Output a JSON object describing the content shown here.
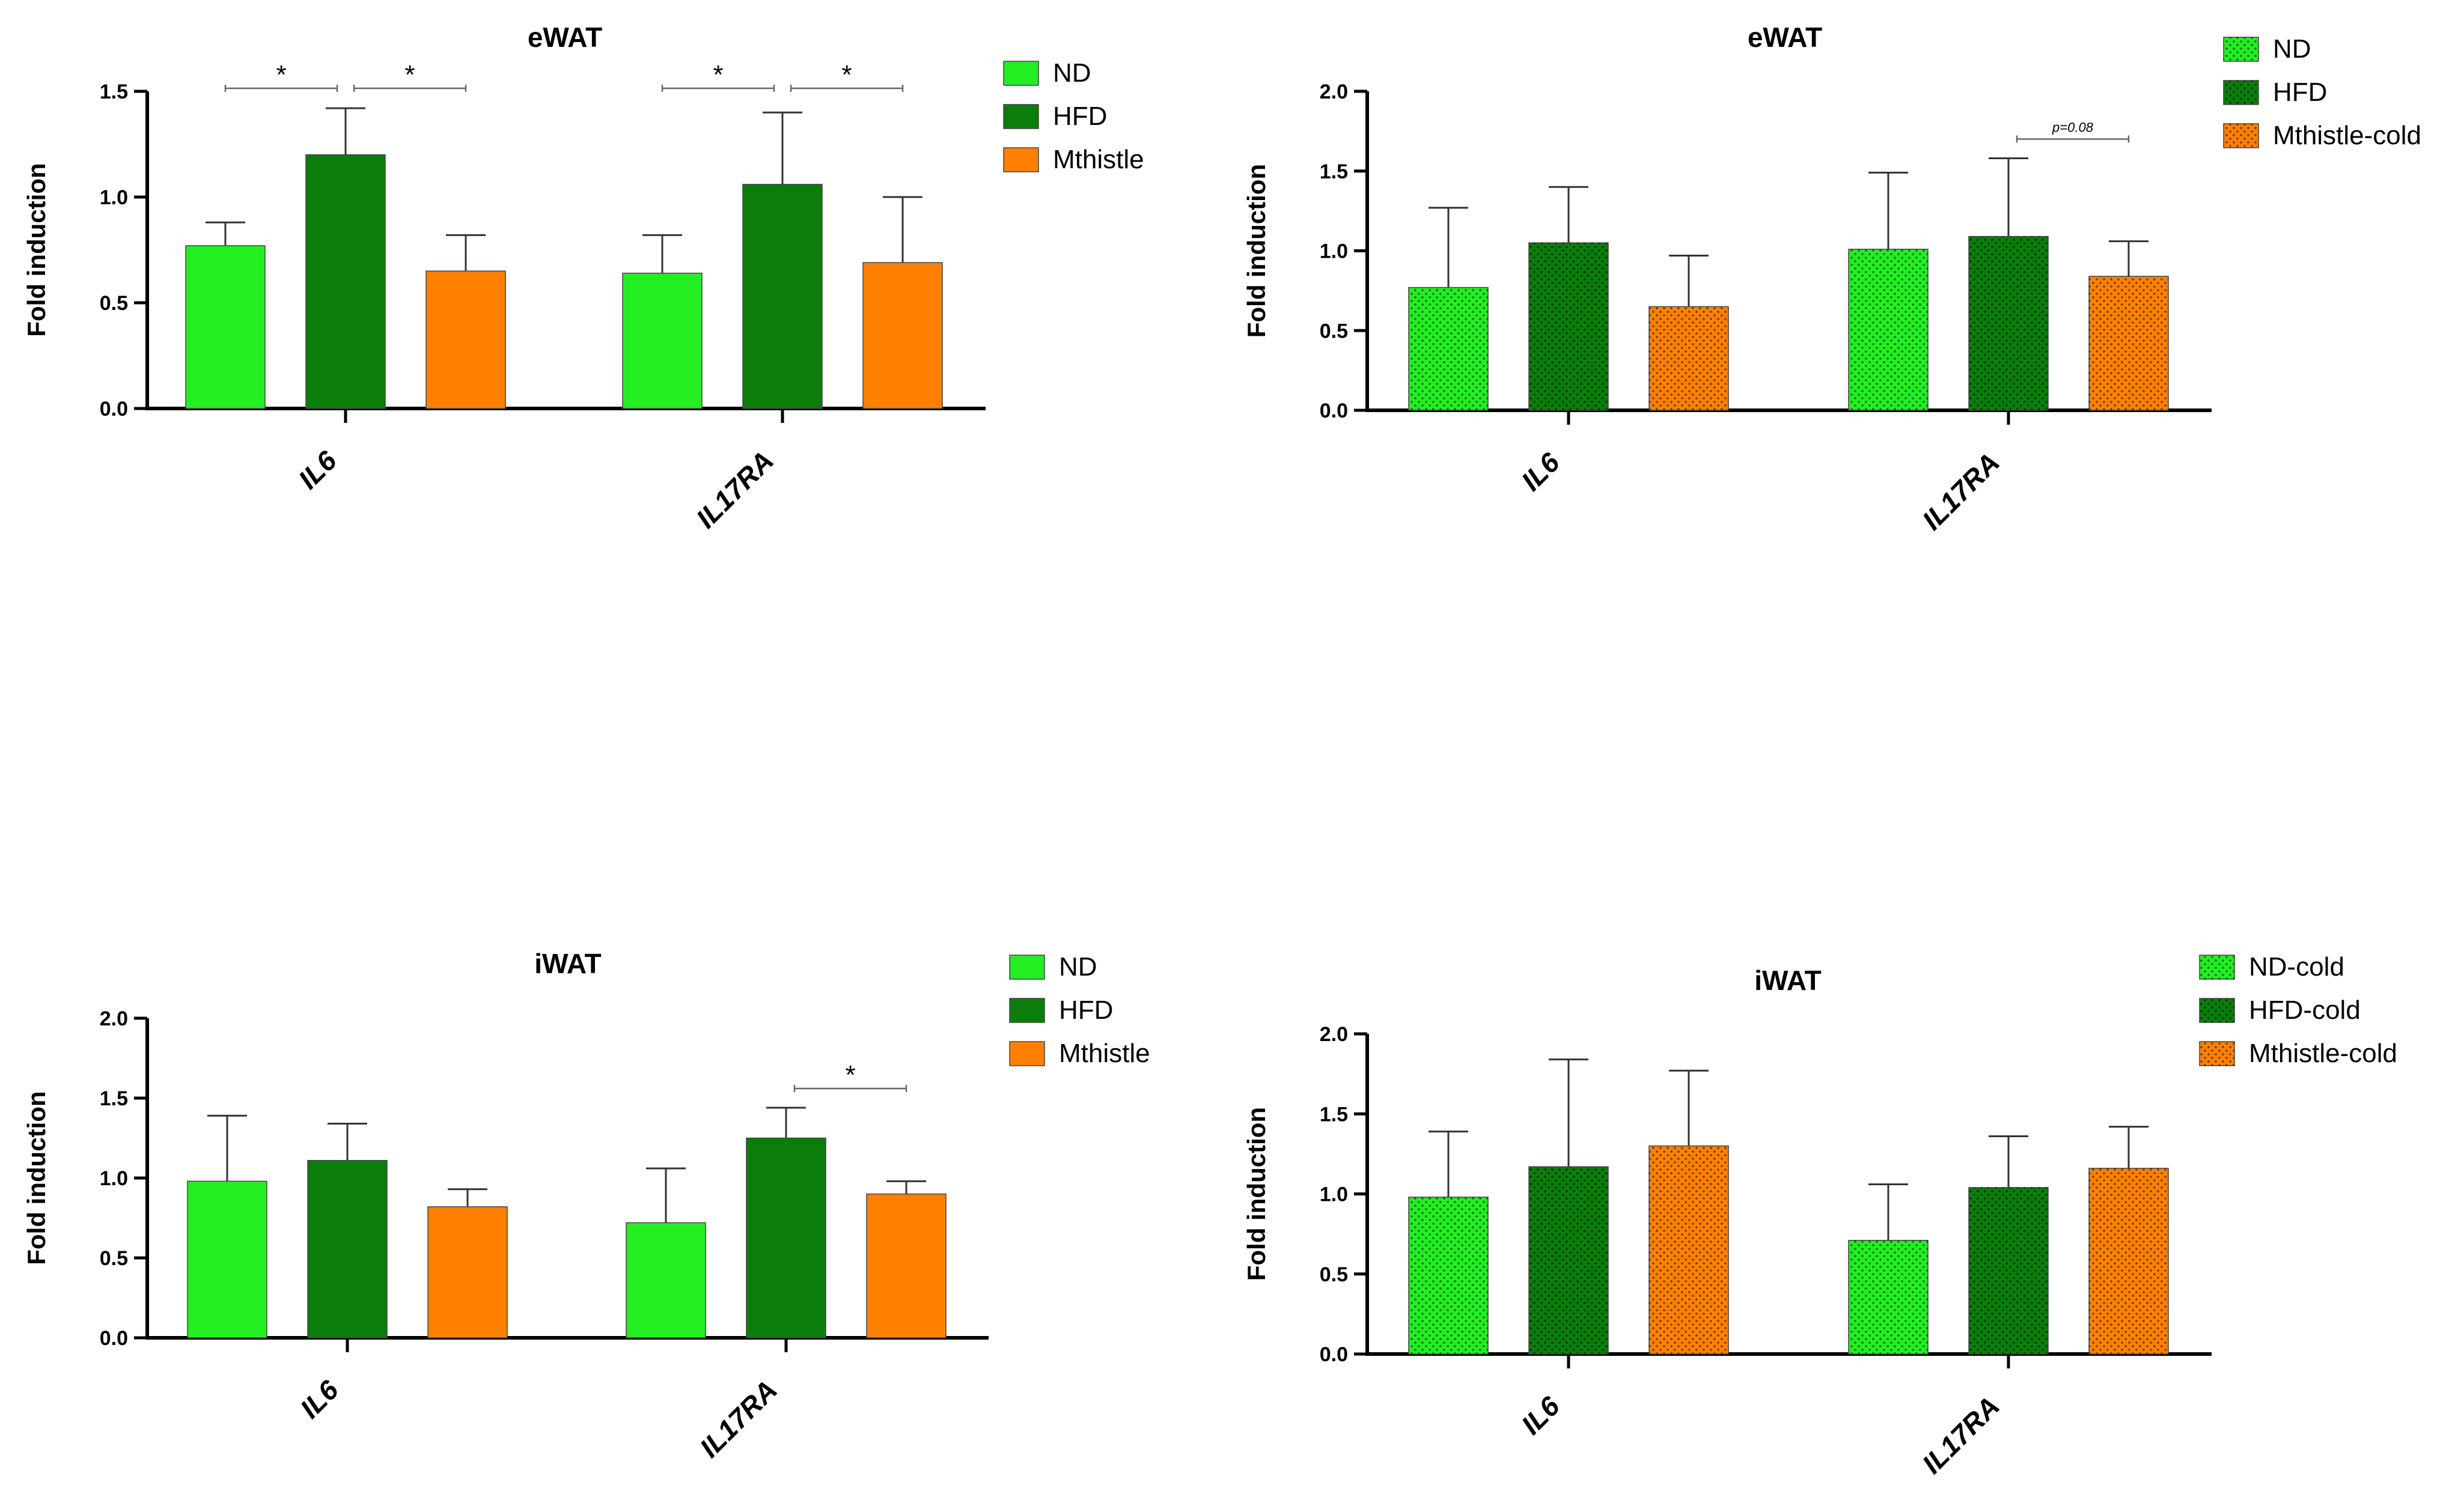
{
  "chart_data": [
    {
      "type": "bar",
      "title": "eWAT",
      "ylabel": "Fold induction",
      "ylim": [
        0,
        1.5
      ],
      "yticks": [
        0.0,
        0.5,
        1.0,
        1.5
      ],
      "categories": [
        "IL6",
        "IL17RA"
      ],
      "series": [
        {
          "name": "ND",
          "values": [
            0.77,
            0.64
          ],
          "errors": [
            0.11,
            0.18
          ],
          "color": "#22ee22",
          "dotted": false
        },
        {
          "name": "HFD",
          "values": [
            1.2,
            1.06
          ],
          "errors": [
            0.22,
            0.34
          ],
          "color": "#0a7d0a",
          "dotted": false
        },
        {
          "name": "Mthistle",
          "values": [
            0.65,
            0.69
          ],
          "errors": [
            0.17,
            0.31
          ],
          "color": "#ff8000",
          "dotted": false
        }
      ],
      "significance": [
        {
          "category": 0,
          "from": 0,
          "to": 1,
          "label": "*"
        },
        {
          "category": 0,
          "from": 1,
          "to": 2,
          "label": "*"
        },
        {
          "category": 1,
          "from": 0,
          "to": 1,
          "label": "*"
        },
        {
          "category": 1,
          "from": 1,
          "to": 2,
          "label": "*"
        }
      ]
    },
    {
      "type": "bar",
      "title": "eWAT",
      "ylabel": "Fold induction",
      "ylim": [
        0,
        2.0
      ],
      "yticks": [
        0.0,
        0.5,
        1.0,
        1.5,
        2.0
      ],
      "categories": [
        "IL6",
        "IL17RA"
      ],
      "series": [
        {
          "name": "ND",
          "values": [
            0.77,
            1.01
          ],
          "errors": [
            0.5,
            0.48
          ],
          "color": "#22ee22",
          "dotted": true
        },
        {
          "name": "HFD",
          "values": [
            1.05,
            1.09
          ],
          "errors": [
            0.35,
            0.49
          ],
          "color": "#0a7d0a",
          "dotted": true
        },
        {
          "name": "Mthistle-cold",
          "values": [
            0.65,
            0.84
          ],
          "errors": [
            0.32,
            0.22
          ],
          "color": "#ff8000",
          "dotted": true
        }
      ],
      "significance": [
        {
          "category": 1,
          "from": 1,
          "to": 2,
          "label": "p=0.08"
        }
      ]
    },
    {
      "type": "bar",
      "title": "iWAT",
      "ylabel": "Fold induction",
      "ylim": [
        0,
        2.0
      ],
      "yticks": [
        0.0,
        0.5,
        1.0,
        1.5,
        2.0
      ],
      "categories": [
        "IL6",
        "IL17RA"
      ],
      "series": [
        {
          "name": "ND",
          "values": [
            0.98,
            0.72
          ],
          "errors": [
            0.41,
            0.34
          ],
          "color": "#22ee22",
          "dotted": false
        },
        {
          "name": "HFD",
          "values": [
            1.11,
            1.25
          ],
          "errors": [
            0.23,
            0.19
          ],
          "color": "#0a7d0a",
          "dotted": false
        },
        {
          "name": "Mthistle",
          "values": [
            0.82,
            0.9
          ],
          "errors": [
            0.11,
            0.08
          ],
          "color": "#ff8000",
          "dotted": false
        }
      ],
      "significance": [
        {
          "category": 1,
          "from": 1,
          "to": 2,
          "label": "*"
        }
      ]
    },
    {
      "type": "bar",
      "title": "iWAT",
      "ylabel": "Fold induction",
      "ylim": [
        0,
        2.0
      ],
      "yticks": [
        0.0,
        0.5,
        1.0,
        1.5,
        2.0
      ],
      "categories": [
        "IL6",
        "IL17RA"
      ],
      "series": [
        {
          "name": "ND-cold",
          "values": [
            0.98,
            0.71
          ],
          "errors": [
            0.41,
            0.35
          ],
          "color": "#22ee22",
          "dotted": true
        },
        {
          "name": "HFD-cold",
          "values": [
            1.17,
            1.04
          ],
          "errors": [
            0.67,
            0.32
          ],
          "color": "#0a7d0a",
          "dotted": true
        },
        {
          "name": "Mthistle-cold",
          "values": [
            1.3,
            1.16
          ],
          "errors": [
            0.47,
            0.26
          ],
          "color": "#ff8000",
          "dotted": true
        }
      ],
      "significance": []
    }
  ]
}
